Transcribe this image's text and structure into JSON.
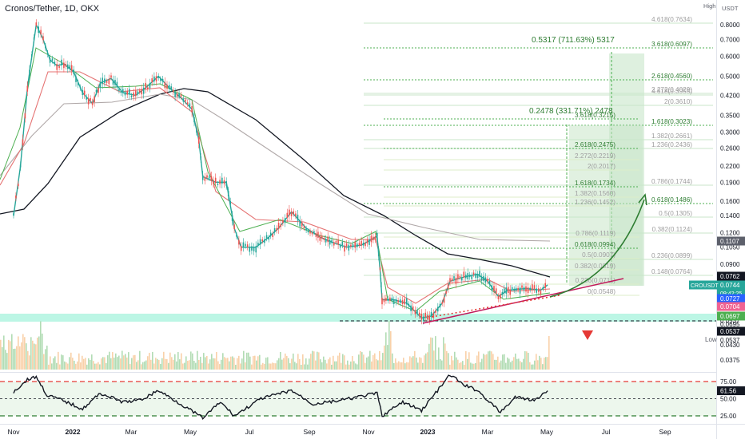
{
  "header": {
    "title": "Cronos/Tether, 1D, OKX",
    "scale_mode": "High",
    "currency": "USDT"
  },
  "chart_data": {
    "type": "candlestick",
    "symbol": "CROUSDT",
    "exchange": "OKX",
    "interval": "1D",
    "price_axis": {
      "scale": "log",
      "ticks": [
        0.8,
        0.7,
        0.6,
        0.5,
        0.42,
        0.35,
        0.3,
        0.26,
        0.22,
        0.19,
        0.16,
        0.14,
        0.12,
        0.105,
        0.09,
        0.08,
        0.07,
        0.0615,
        0.0537,
        0.043,
        0.0375
      ],
      "tick_labels": [
        "0.8000",
        "0.7000",
        "0.6000",
        "0.5000",
        "0.4200",
        "0.3500",
        "0.3000",
        "0.2600",
        "0.2200",
        "0.1900",
        "0.1600",
        "0.1400",
        "0.1200",
        "0.1050",
        "0.0900",
        "0.0800",
        "0.0700",
        "0.0615",
        "0.0537",
        "0.0430",
        "0.0375"
      ],
      "low_label": "Low",
      "markers": [
        {
          "label": "0.1107",
          "value": 0.1107,
          "color": "#5d606b"
        },
        {
          "label": "0.0762",
          "value": 0.0762,
          "color": "#131722"
        },
        {
          "label": "0.0744",
          "value": 0.0744,
          "color": "#26a69a",
          "symbol": "CROUSDT",
          "countdown": "09:42:25"
        },
        {
          "label": "0.0727",
          "value": 0.0727,
          "color": "#2962ff"
        },
        {
          "label": "0.0704",
          "value": 0.0704,
          "color": "#f06292"
        },
        {
          "label": "0.0697",
          "value": 0.0697,
          "color": "#4caf50"
        },
        {
          "label": "0.0695",
          "value": 0.0695,
          "color": "none"
        },
        {
          "label": "0.0537",
          "value": 0.0537,
          "color": "#131722"
        },
        {
          "label": "0.0537",
          "value": 0.0537,
          "color": "none"
        }
      ]
    },
    "time_axis": [
      "Nov",
      "2022",
      "Mar",
      "May",
      "Jul",
      "Sep",
      "Nov",
      "2023",
      "Mar",
      "May",
      "Jul",
      "Sep"
    ],
    "price_path": [
      [
        "2021-11-01",
        0.14
      ],
      [
        "2021-11-08",
        0.22
      ],
      [
        "2021-11-15",
        0.45
      ],
      [
        "2021-11-24",
        0.8
      ],
      [
        "2021-12-01",
        0.7
      ],
      [
        "2021-12-08",
        0.58
      ],
      [
        "2021-12-15",
        0.55
      ],
      [
        "2021-12-22",
        0.56
      ],
      [
        "2022-01-01",
        0.52
      ],
      [
        "2022-01-10",
        0.43
      ],
      [
        "2022-01-20",
        0.39
      ],
      [
        "2022-01-28",
        0.47
      ],
      [
        "2022-02-08",
        0.49
      ],
      [
        "2022-02-20",
        0.43
      ],
      [
        "2022-03-05",
        0.42
      ],
      [
        "2022-03-15",
        0.45
      ],
      [
        "2022-03-28",
        0.5
      ],
      [
        "2022-04-08",
        0.45
      ],
      [
        "2022-04-20",
        0.41
      ],
      [
        "2022-05-01",
        0.37
      ],
      [
        "2022-05-08",
        0.28
      ],
      [
        "2022-05-12",
        0.2
      ],
      [
        "2022-05-25",
        0.19
      ],
      [
        "2022-06-05",
        0.19
      ],
      [
        "2022-06-13",
        0.125
      ],
      [
        "2022-06-20",
        0.105
      ],
      [
        "2022-07-05",
        0.105
      ],
      [
        "2022-07-18",
        0.115
      ],
      [
        "2022-07-28",
        0.125
      ],
      [
        "2022-08-10",
        0.145
      ],
      [
        "2022-08-25",
        0.125
      ],
      [
        "2022-09-08",
        0.115
      ],
      [
        "2022-09-20",
        0.11
      ],
      [
        "2022-10-05",
        0.105
      ],
      [
        "2022-10-20",
        0.107
      ],
      [
        "2022-11-05",
        0.116
      ],
      [
        "2022-11-08",
        0.085
      ],
      [
        "2022-11-10",
        0.065
      ],
      [
        "2022-11-22",
        0.065
      ],
      [
        "2022-12-05",
        0.063
      ],
      [
        "2022-12-20",
        0.055
      ],
      [
        "2022-12-30",
        0.056
      ],
      [
        "2023-01-10",
        0.063
      ],
      [
        "2023-01-18",
        0.077
      ],
      [
        "2023-02-01",
        0.08
      ],
      [
        "2023-02-15",
        0.082
      ],
      [
        "2023-02-25",
        0.077
      ],
      [
        "2023-03-08",
        0.067
      ],
      [
        "2023-03-18",
        0.071
      ],
      [
        "2023-04-05",
        0.072
      ],
      [
        "2023-04-20",
        0.071
      ],
      [
        "2023-04-27",
        0.0744
      ]
    ],
    "fib_extension_1": {
      "gain_label": "0.2478 (331.71%) 2478",
      "levels": [
        {
          "label": "3.618(0.3215)"
        },
        {
          "label": "2.618(0.2475)"
        },
        {
          "label": "2.272(0.2219)"
        },
        {
          "label": "2(0.2017)"
        },
        {
          "label": "1.618(0.1734)"
        },
        {
          "label": "1.382(0.1560)"
        },
        {
          "label": "1.236(0.1452)"
        },
        {
          "label": "0.786(0.1119)"
        },
        {
          "label": "0.618(0.0994)"
        },
        {
          "label": "0.5(0.0907)"
        },
        {
          "label": "0.382(0.0819)"
        },
        {
          "label": "0.236(0.0711)"
        },
        {
          "label": "0(0.0548)"
        }
      ]
    },
    "fib_extension_2": {
      "gain_label": "0.5317 (711.63%) 5317",
      "levels": [
        {
          "label": "4.618(0.7634)"
        },
        {
          "label": "3.618(0.6097)"
        },
        {
          "label": "2.618(0.4560)"
        },
        {
          "label": "2.272(0.4029)"
        },
        {
          "label": "4.618(0.3955)"
        },
        {
          "label": "2(0.3610)"
        },
        {
          "label": "1.618(0.3023)"
        },
        {
          "label": "1.382(0.2661)"
        },
        {
          "label": "1.236(0.2436)"
        },
        {
          "label": "0.786(0.1744)"
        },
        {
          "label": "0.618(0.1486)"
        },
        {
          "label": "0.5(0.1305)"
        },
        {
          "label": "0.382(0.1124)"
        },
        {
          "label": "0.236(0.0899)"
        },
        {
          "label": "0.148(0.0764)"
        }
      ]
    },
    "support_level": 0.0537,
    "rsi": {
      "value": 61.56,
      "value_label": "61.56",
      "ticks": [
        "75.00",
        "50.00",
        "25.00"
      ],
      "series": [
        [
          "2021-11-01",
          60
        ],
        [
          "2021-11-15",
          78
        ],
        [
          "2021-11-24",
          82
        ],
        [
          "2021-12-05",
          55
        ],
        [
          "2021-12-20",
          48
        ],
        [
          "2022-01-10",
          35
        ],
        [
          "2022-01-28",
          58
        ],
        [
          "2022-02-20",
          45
        ],
        [
          "2022-03-10",
          48
        ],
        [
          "2022-03-28",
          62
        ],
        [
          "2022-04-20",
          42
        ],
        [
          "2022-05-12",
          22
        ],
        [
          "2022-05-30",
          45
        ],
        [
          "2022-06-13",
          25
        ],
        [
          "2022-07-10",
          50
        ],
        [
          "2022-08-10",
          62
        ],
        [
          "2022-09-01",
          42
        ],
        [
          "2022-10-01",
          48
        ],
        [
          "2022-11-05",
          58
        ],
        [
          "2022-11-10",
          25
        ],
        [
          "2022-12-01",
          45
        ],
        [
          "2022-12-20",
          33
        ],
        [
          "2023-01-10",
          70
        ],
        [
          "2023-01-18",
          85
        ],
        [
          "2023-02-01",
          70
        ],
        [
          "2023-02-15",
          62
        ],
        [
          "2023-03-10",
          30
        ],
        [
          "2023-03-25",
          52
        ],
        [
          "2023-04-15",
          48
        ],
        [
          "2023-04-27",
          61.56
        ]
      ]
    }
  }
}
